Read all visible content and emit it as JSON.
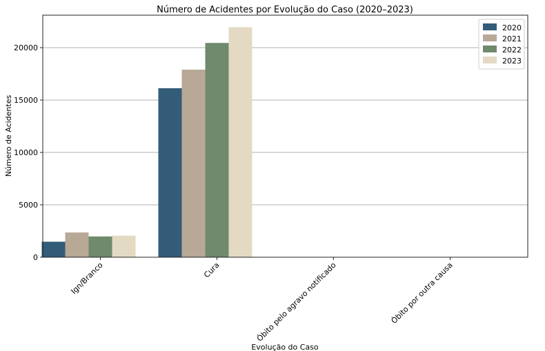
{
  "chart_data": {
    "type": "bar",
    "title": "Número de Acidentes por Evolução do Caso (2020–2023)",
    "xlabel": "Evolução do Caso",
    "ylabel": "Número de Acidentes",
    "categories": [
      "Ign/Branco",
      "Cura",
      "Óbito pelo agravo notificado",
      "Óbito por outra causa"
    ],
    "series": [
      {
        "name": "2020",
        "color": "#335c78",
        "values": [
          1480,
          16130,
          10,
          5
        ]
      },
      {
        "name": "2021",
        "color": "#b8a896",
        "values": [
          2360,
          17900,
          10,
          5
        ]
      },
      {
        "name": "2022",
        "color": "#6f8a6d",
        "values": [
          1980,
          20450,
          10,
          5
        ]
      },
      {
        "name": "2023",
        "color": "#e4d9c3",
        "values": [
          2060,
          21950,
          10,
          5
        ]
      }
    ],
    "ylim": [
      0,
      23100
    ],
    "yticks": [
      0,
      5000,
      10000,
      15000,
      20000
    ],
    "grid": "y",
    "legend": "top-right"
  }
}
